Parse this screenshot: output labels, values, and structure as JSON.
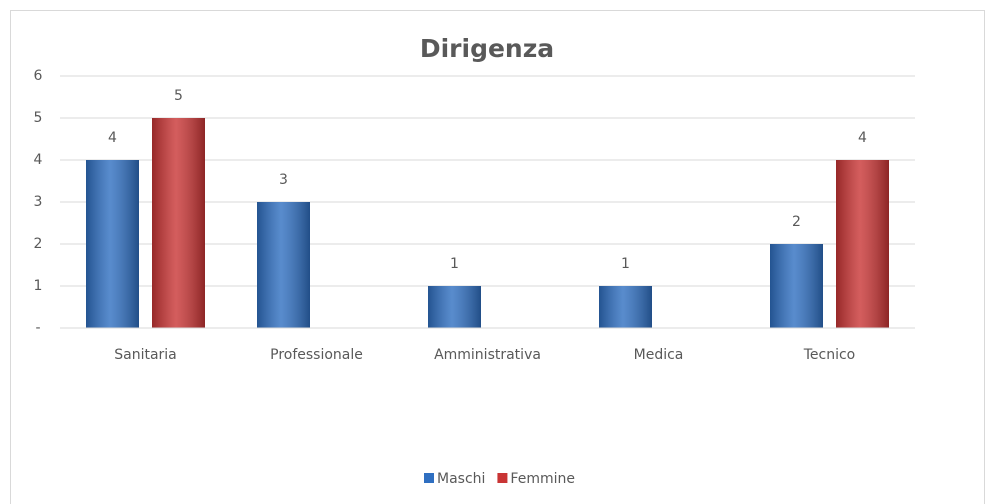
{
  "chart_data": {
    "type": "bar",
    "title": "Dirigenza",
    "categories": [
      "Sanitaria",
      "Professionale",
      "Amministrativa",
      "Medica",
      "Tecnico"
    ],
    "series": [
      {
        "name": "Maschi",
        "color": "#2f6fc1",
        "values": [
          4,
          3,
          1,
          1,
          2
        ]
      },
      {
        "name": "Femmine",
        "color": "#c93535",
        "values": [
          5,
          null,
          null,
          null,
          4
        ]
      }
    ],
    "ylim": [
      0,
      6
    ],
    "yticks": [
      {
        "value": 0,
        "label": "-"
      },
      1,
      2,
      3,
      4,
      5,
      6
    ],
    "grid": true,
    "legend": "bottom"
  }
}
